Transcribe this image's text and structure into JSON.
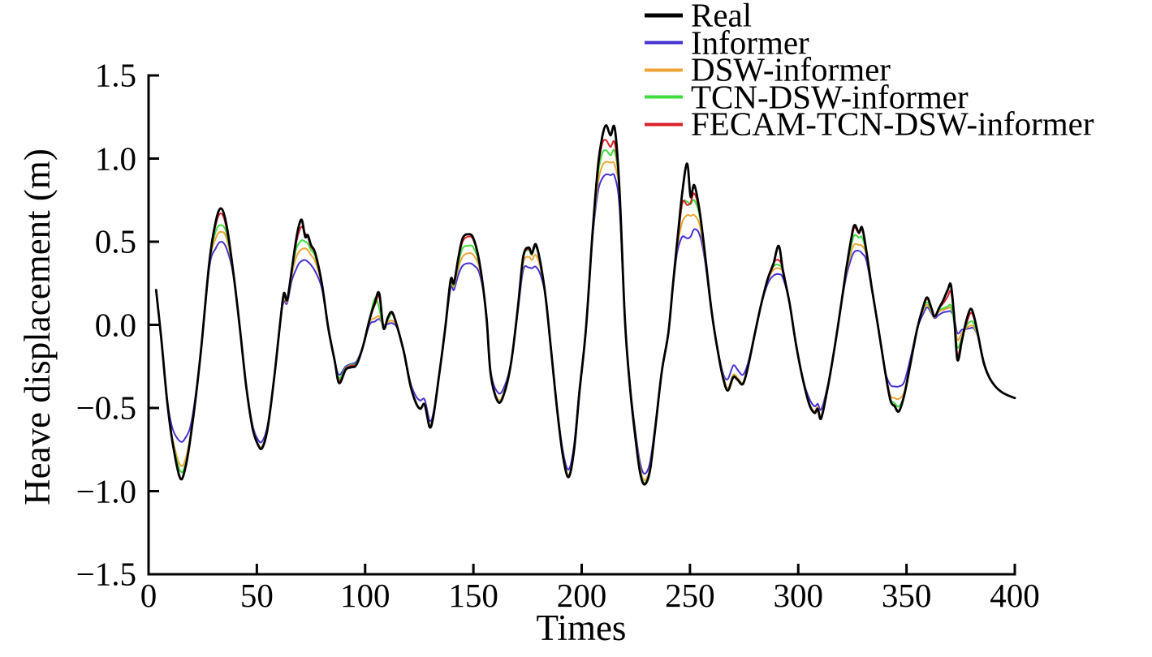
{
  "chart_data": {
    "type": "line",
    "title": "",
    "xlabel": "Times",
    "ylabel": "Heave displacement (m)",
    "xlim": [
      0,
      400
    ],
    "ylim": [
      -1.5,
      1.5
    ],
    "grid": false,
    "legend_position": "top-right",
    "xticks": {
      "values": [
        0,
        50,
        100,
        150,
        200,
        250,
        300,
        350,
        400
      ],
      "labels": [
        "0",
        "50",
        "100",
        "150",
        "200",
        "250",
        "300",
        "350",
        "400"
      ]
    },
    "yticks": {
      "values": [
        1.5,
        1.0,
        0.5,
        0.0,
        -0.5,
        -1.0,
        -1.5
      ],
      "labels": [
        "1.5",
        "1.0",
        "0.5",
        "0.0",
        "−0.5",
        "−1.0",
        "−1.5"
      ]
    },
    "x": [
      3.5,
      6,
      8.5,
      11,
      14.5,
      17,
      20,
      24,
      28,
      31,
      33.5,
      36,
      39,
      42,
      45,
      48,
      50.5,
      52.5,
      55,
      58,
      61,
      62.5,
      64,
      66,
      68,
      69.5,
      70.8,
      72.3,
      73.5,
      75,
      77,
      80,
      83,
      86,
      88,
      91,
      93.5,
      96,
      99,
      102,
      104.5,
      106.5,
      108.5,
      110.5,
      112.5,
      115,
      118,
      121,
      123.5,
      125.5,
      127.5,
      129.8,
      131.5,
      134,
      137,
      139.5,
      141,
      143,
      145,
      147.5,
      150,
      153,
      156,
      158,
      161.5,
      164.5,
      167.5,
      170.5,
      173,
      175.5,
      177,
      178.8,
      181,
      183.5,
      186,
      189,
      191.5,
      194,
      196.5,
      199,
      202,
      205,
      207.5,
      209.5,
      211.3,
      213.3,
      215.3,
      217.5,
      220,
      222.5,
      225,
      227,
      229,
      231.5,
      234,
      237,
      240,
      242,
      243.5,
      244.5,
      246.5,
      248.7,
      250.3,
      252,
      254.5,
      257,
      260,
      263,
      265.5,
      267.5,
      270,
      272,
      274.5,
      277,
      280,
      283,
      286,
      288.5,
      291,
      293,
      296,
      299,
      302,
      305,
      307.5,
      309,
      310.5,
      313,
      316,
      319,
      322,
      324.5,
      326,
      328,
      329.5,
      331.5,
      334,
      337,
      340,
      342.5,
      344.5,
      346.5,
      349,
      352,
      355,
      357.5,
      359.5,
      361.5,
      363,
      365,
      367,
      369,
      370.5,
      372,
      373.5,
      375.5,
      377.5,
      379.5,
      381,
      383,
      385.5,
      388,
      391,
      394,
      397,
      400
    ],
    "series": [
      {
        "name": "Real",
        "color": "#000000",
        "width": 2.8,
        "values": [
          0.21,
          -0.1,
          -0.45,
          -0.7,
          -0.92,
          -0.86,
          -0.62,
          -0.18,
          0.37,
          0.62,
          0.7,
          0.6,
          0.33,
          0.0,
          -0.36,
          -0.62,
          -0.72,
          -0.74,
          -0.62,
          -0.32,
          0.04,
          0.19,
          0.15,
          0.32,
          0.5,
          0.6,
          0.63,
          0.53,
          0.54,
          0.48,
          0.43,
          0.25,
          -0.02,
          -0.22,
          -0.35,
          -0.27,
          -0.255,
          -0.24,
          -0.13,
          0.03,
          0.135,
          0.19,
          -0.02,
          0.045,
          0.075,
          -0.02,
          -0.17,
          -0.37,
          -0.47,
          -0.505,
          -0.48,
          -0.615,
          -0.55,
          -0.32,
          -0.02,
          0.27,
          0.25,
          0.4,
          0.52,
          0.545,
          0.52,
          0.36,
          0.05,
          -0.3,
          -0.465,
          -0.4,
          -0.22,
          0.1,
          0.41,
          0.465,
          0.43,
          0.485,
          0.37,
          0.15,
          -0.17,
          -0.55,
          -0.8,
          -0.915,
          -0.75,
          -0.4,
          -0.02,
          0.55,
          0.95,
          1.13,
          1.2,
          1.14,
          1.18,
          0.8,
          0.02,
          -0.4,
          -0.7,
          -0.89,
          -0.96,
          -0.88,
          -0.62,
          -0.28,
          -0.05,
          0.22,
          0.42,
          0.55,
          0.8,
          0.97,
          0.77,
          0.84,
          0.68,
          0.42,
          0.08,
          -0.17,
          -0.33,
          -0.395,
          -0.315,
          -0.33,
          -0.355,
          -0.24,
          -0.05,
          0.13,
          0.28,
          0.365,
          0.475,
          0.32,
          0.13,
          -0.12,
          -0.32,
          -0.475,
          -0.53,
          -0.505,
          -0.565,
          -0.42,
          -0.2,
          0.05,
          0.32,
          0.52,
          0.6,
          0.555,
          0.585,
          0.44,
          0.22,
          -0.02,
          -0.27,
          -0.45,
          -0.49,
          -0.52,
          -0.42,
          -0.22,
          -0.02,
          0.1,
          0.165,
          0.1,
          0.05,
          0.1,
          0.15,
          0.21,
          0.24,
          0.05,
          -0.21,
          -0.1,
          0.02,
          0.095,
          0.06,
          -0.06,
          -0.22,
          -0.31,
          -0.37,
          -0.405,
          -0.425,
          -0.44
        ]
      },
      {
        "name": "Informer",
        "color": "#4431d1",
        "width": 2,
        "values": [
          0.21,
          -0.1,
          -0.44,
          -0.62,
          -0.7,
          -0.68,
          -0.57,
          -0.18,
          0.34,
          0.46,
          0.5,
          0.46,
          0.31,
          0.0,
          -0.36,
          -0.6,
          -0.69,
          -0.7,
          -0.6,
          -0.32,
          0.04,
          0.14,
          0.13,
          0.26,
          0.33,
          0.37,
          0.385,
          0.39,
          0.38,
          0.36,
          0.32,
          0.22,
          -0.02,
          -0.22,
          -0.3,
          -0.25,
          -0.235,
          -0.22,
          -0.13,
          0.0,
          0.02,
          0.035,
          0.0,
          0.005,
          0.01,
          -0.025,
          -0.17,
          -0.35,
          -0.43,
          -0.455,
          -0.45,
          -0.575,
          -0.53,
          -0.32,
          -0.02,
          0.22,
          0.21,
          0.3,
          0.355,
          0.37,
          0.36,
          0.3,
          0.07,
          -0.28,
          -0.41,
          -0.365,
          -0.22,
          0.08,
          0.33,
          0.345,
          0.34,
          0.35,
          0.3,
          0.16,
          -0.17,
          -0.54,
          -0.77,
          -0.87,
          -0.72,
          -0.38,
          -0.02,
          0.52,
          0.8,
          0.88,
          0.905,
          0.9,
          0.89,
          0.7,
          0.02,
          -0.38,
          -0.66,
          -0.83,
          -0.895,
          -0.83,
          -0.6,
          -0.28,
          -0.06,
          0.21,
          0.38,
          0.46,
          0.53,
          0.52,
          0.53,
          0.575,
          0.54,
          0.38,
          0.07,
          -0.16,
          -0.3,
          -0.325,
          -0.245,
          -0.27,
          -0.3,
          -0.22,
          -0.05,
          0.13,
          0.25,
          0.295,
          0.305,
          0.28,
          0.13,
          -0.12,
          -0.32,
          -0.44,
          -0.49,
          -0.475,
          -0.51,
          -0.4,
          -0.2,
          0.05,
          0.28,
          0.4,
          0.44,
          0.445,
          0.43,
          0.385,
          0.21,
          -0.02,
          -0.27,
          -0.36,
          -0.37,
          -0.37,
          -0.34,
          -0.19,
          -0.02,
          0.06,
          0.105,
          0.07,
          0.04,
          0.06,
          0.075,
          0.08,
          0.08,
          0.04,
          -0.05,
          -0.03,
          -0.025,
          -0.02,
          -0.02,
          -0.07,
          -0.21,
          -0.31,
          -0.37,
          -0.405,
          -0.425,
          -0.44
        ]
      },
      {
        "name": "DSW-informer",
        "color": "#eda431",
        "width": 2,
        "values": [
          0.21,
          -0.1,
          -0.45,
          -0.68,
          -0.84,
          -0.81,
          -0.61,
          -0.18,
          0.36,
          0.52,
          0.56,
          0.52,
          0.32,
          0.0,
          -0.36,
          -0.61,
          -0.715,
          -0.73,
          -0.615,
          -0.32,
          0.04,
          0.16,
          0.14,
          0.29,
          0.4,
          0.44,
          0.455,
          0.46,
          0.45,
          0.42,
          0.38,
          0.24,
          -0.02,
          -0.22,
          -0.33,
          -0.26,
          -0.245,
          -0.23,
          -0.13,
          0.015,
          0.04,
          0.05,
          -0.01,
          0.015,
          0.025,
          -0.02,
          -0.17,
          -0.36,
          -0.465,
          -0.5,
          -0.475,
          -0.6,
          -0.545,
          -0.32,
          -0.02,
          0.24,
          0.23,
          0.34,
          0.41,
          0.43,
          0.42,
          0.33,
          0.06,
          -0.29,
          -0.45,
          -0.39,
          -0.22,
          0.09,
          0.37,
          0.41,
          0.39,
          0.42,
          0.34,
          0.155,
          -0.17,
          -0.55,
          -0.79,
          -0.905,
          -0.74,
          -0.39,
          -0.02,
          0.54,
          0.85,
          0.955,
          0.98,
          0.975,
          0.96,
          0.77,
          0.02,
          -0.39,
          -0.68,
          -0.86,
          -0.935,
          -0.86,
          -0.61,
          -0.28,
          -0.055,
          0.215,
          0.4,
          0.5,
          0.62,
          0.66,
          0.655,
          0.66,
          0.6,
          0.4,
          0.075,
          -0.165,
          -0.315,
          -0.38,
          -0.3,
          -0.32,
          -0.345,
          -0.24,
          -0.05,
          0.13,
          0.27,
          0.33,
          0.34,
          0.31,
          0.13,
          -0.12,
          -0.32,
          -0.465,
          -0.52,
          -0.495,
          -0.55,
          -0.41,
          -0.2,
          0.05,
          0.3,
          0.44,
          0.485,
          0.48,
          0.475,
          0.42,
          0.215,
          -0.02,
          -0.27,
          -0.42,
          -0.44,
          -0.445,
          -0.4,
          -0.21,
          -0.01,
          0.08,
          0.12,
          0.08,
          0.045,
          0.08,
          0.09,
          0.1,
          0.1,
          0.03,
          -0.09,
          -0.05,
          -0.02,
          -0.005,
          -0.01,
          -0.07,
          -0.22,
          -0.31,
          -0.37,
          -0.405,
          -0.425,
          -0.44
        ]
      },
      {
        "name": "TCN-DSW-informer",
        "color": "#3edc3e",
        "width": 2,
        "values": [
          0.21,
          -0.1,
          -0.45,
          -0.69,
          -0.875,
          -0.84,
          -0.62,
          -0.18,
          0.37,
          0.56,
          0.6,
          0.55,
          0.33,
          0.0,
          -0.36,
          -0.62,
          -0.72,
          -0.74,
          -0.62,
          -0.32,
          0.04,
          0.17,
          0.15,
          0.31,
          0.45,
          0.49,
          0.51,
          0.5,
          0.49,
          0.45,
          0.41,
          0.25,
          -0.02,
          -0.22,
          -0.32,
          -0.26,
          -0.24,
          -0.23,
          -0.13,
          0.03,
          0.16,
          0.1,
          -0.02,
          0.03,
          0.065,
          -0.02,
          -0.17,
          -0.37,
          -0.47,
          -0.505,
          -0.48,
          -0.615,
          -0.55,
          -0.32,
          -0.02,
          0.25,
          0.24,
          0.37,
          0.46,
          0.475,
          0.465,
          0.35,
          0.05,
          -0.3,
          -0.46,
          -0.4,
          -0.22,
          0.1,
          0.4,
          0.45,
          0.42,
          0.47,
          0.36,
          0.15,
          -0.17,
          -0.55,
          -0.8,
          -0.915,
          -0.75,
          -0.4,
          -0.02,
          0.545,
          0.9,
          1.03,
          1.05,
          1.02,
          1.04,
          0.79,
          0.02,
          -0.4,
          -0.69,
          -0.875,
          -0.95,
          -0.87,
          -0.615,
          -0.28,
          -0.05,
          0.22,
          0.41,
          0.52,
          0.73,
          0.74,
          0.725,
          0.75,
          0.65,
          0.41,
          0.08,
          -0.17,
          -0.325,
          -0.39,
          -0.31,
          -0.33,
          -0.35,
          -0.24,
          -0.05,
          0.13,
          0.28,
          0.35,
          0.36,
          0.32,
          0.13,
          -0.12,
          -0.32,
          -0.475,
          -0.53,
          -0.505,
          -0.56,
          -0.42,
          -0.2,
          0.05,
          0.31,
          0.48,
          0.54,
          0.525,
          0.525,
          0.43,
          0.22,
          -0.02,
          -0.27,
          -0.44,
          -0.47,
          -0.49,
          -0.415,
          -0.22,
          -0.02,
          0.09,
          0.135,
          0.09,
          0.05,
          0.09,
          0.1,
          0.11,
          0.115,
          0.01,
          -0.135,
          -0.08,
          -0.01,
          0.02,
          0.01,
          -0.07,
          -0.22,
          -0.31,
          -0.37,
          -0.405,
          -0.425,
          -0.44
        ]
      },
      {
        "name": "FECAM-TCN-DSW-informer",
        "color": "#da2128",
        "width": 2,
        "values": [
          0.21,
          -0.1,
          -0.45,
          -0.7,
          -0.915,
          -0.855,
          -0.62,
          -0.18,
          0.37,
          0.6,
          0.67,
          0.58,
          0.33,
          0.0,
          -0.36,
          -0.62,
          -0.72,
          -0.74,
          -0.62,
          -0.32,
          0.04,
          0.18,
          0.15,
          0.32,
          0.48,
          0.56,
          0.59,
          0.55,
          0.53,
          0.47,
          0.425,
          0.25,
          -0.02,
          -0.22,
          -0.34,
          -0.265,
          -0.245,
          -0.235,
          -0.13,
          0.03,
          0.12,
          0.17,
          -0.02,
          0.04,
          0.07,
          -0.02,
          -0.17,
          -0.37,
          -0.47,
          -0.505,
          -0.48,
          -0.615,
          -0.55,
          -0.32,
          -0.02,
          0.26,
          0.25,
          0.39,
          0.5,
          0.53,
          0.51,
          0.36,
          0.05,
          -0.3,
          -0.465,
          -0.4,
          -0.22,
          0.1,
          0.405,
          0.455,
          0.425,
          0.475,
          0.365,
          0.15,
          -0.17,
          -0.55,
          -0.8,
          -0.915,
          -0.75,
          -0.4,
          -0.02,
          0.55,
          0.93,
          1.09,
          1.11,
          1.07,
          1.09,
          0.8,
          0.02,
          -0.4,
          -0.7,
          -0.885,
          -0.958,
          -0.875,
          -0.62,
          -0.28,
          -0.05,
          0.22,
          0.41,
          0.52,
          0.735,
          0.72,
          0.735,
          0.79,
          0.67,
          0.42,
          0.08,
          -0.17,
          -0.33,
          -0.395,
          -0.315,
          -0.33,
          -0.355,
          -0.24,
          -0.05,
          0.13,
          0.28,
          0.37,
          0.39,
          0.33,
          0.13,
          -0.12,
          -0.32,
          -0.475,
          -0.53,
          -0.505,
          -0.565,
          -0.42,
          -0.2,
          0.05,
          0.32,
          0.51,
          0.585,
          0.55,
          0.575,
          0.44,
          0.22,
          -0.02,
          -0.27,
          -0.45,
          -0.485,
          -0.515,
          -0.42,
          -0.22,
          -0.02,
          0.1,
          0.155,
          0.1,
          0.05,
          0.1,
          0.13,
          0.17,
          0.2,
          0.04,
          -0.18,
          -0.09,
          0.0,
          0.07,
          0.045,
          -0.06,
          -0.22,
          -0.31,
          -0.37,
          -0.405,
          -0.425,
          -0.44
        ]
      }
    ]
  }
}
